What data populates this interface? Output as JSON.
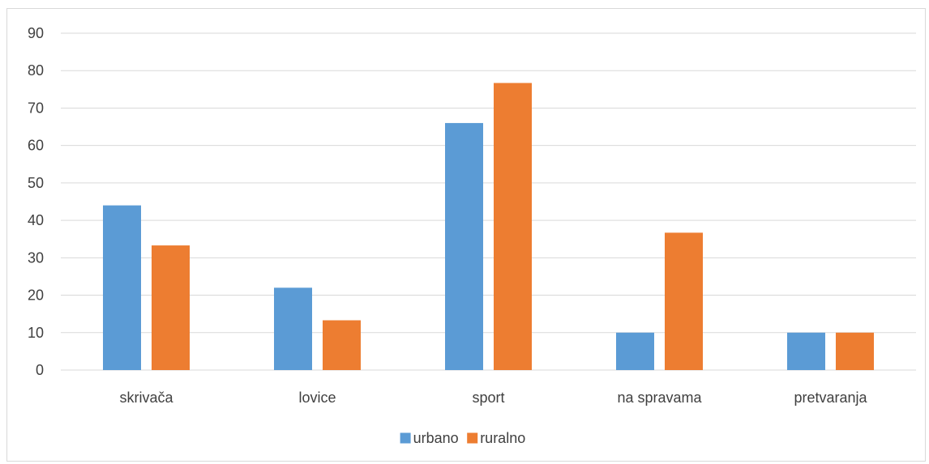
{
  "chart_data": {
    "type": "bar",
    "title": "",
    "xlabel": "",
    "ylabel": "",
    "categories": [
      "skrivača",
      "lovice",
      "sport",
      "na spravama",
      "pretvaranja"
    ],
    "series": [
      {
        "name": "urbano",
        "color": "#5b9bd5",
        "values": [
          44,
          22,
          66,
          10,
          10
        ]
      },
      {
        "name": "ruralno",
        "color": "#ed7d31",
        "values": [
          33.3,
          13.3,
          76.7,
          36.7,
          10
        ]
      }
    ],
    "ylim": [
      0,
      90
    ],
    "yticks": [
      0,
      10,
      20,
      30,
      40,
      50,
      60,
      70,
      80,
      90
    ],
    "grid": true,
    "legend_position": "bottom",
    "colors": {
      "gridline": "#d9d9d9",
      "text": "#404040"
    }
  }
}
